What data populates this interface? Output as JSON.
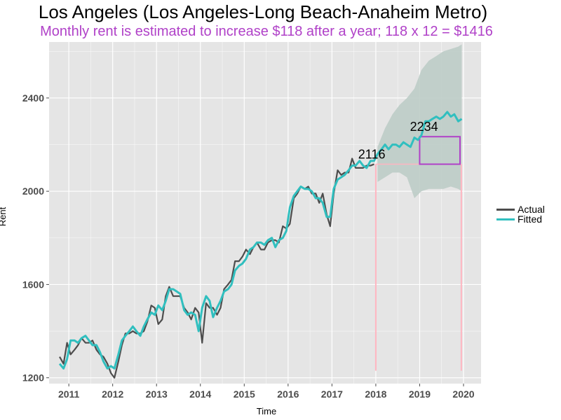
{
  "chart_data": {
    "type": "line",
    "title": "Los Angeles (Los Angeles-Long Beach-Anaheim Metro)",
    "subtitle": "Monthly rent is estimated to increase $118 after a year; 118 x 12 = $1416",
    "xlabel": "Time",
    "ylabel": "Rent",
    "xlim": [
      2010.55,
      2020.4
    ],
    "ylim": [
      1175,
      2640
    ],
    "x_ticks": [
      2011,
      2012,
      2013,
      2014,
      2015,
      2016,
      2017,
      2018,
      2019,
      2020
    ],
    "y_ticks": [
      1200,
      1600,
      2000,
      2400
    ],
    "grid": true,
    "legend_position": "right",
    "series": [
      {
        "name": "Actual",
        "color": "#4d4d4d",
        "x": [
          2010.79,
          2010.88,
          2010.96,
          2011.04,
          2011.13,
          2011.21,
          2011.29,
          2011.38,
          2011.46,
          2011.54,
          2011.63,
          2011.71,
          2011.79,
          2011.88,
          2011.96,
          2012.04,
          2012.13,
          2012.21,
          2012.29,
          2012.38,
          2012.46,
          2012.54,
          2012.63,
          2012.71,
          2012.79,
          2012.88,
          2012.96,
          2013.04,
          2013.13,
          2013.21,
          2013.29,
          2013.38,
          2013.46,
          2013.54,
          2013.63,
          2013.71,
          2013.79,
          2013.88,
          2013.96,
          2014.04,
          2014.13,
          2014.21,
          2014.29,
          2014.38,
          2014.46,
          2014.54,
          2014.63,
          2014.71,
          2014.79,
          2014.88,
          2014.96,
          2015.04,
          2015.13,
          2015.21,
          2015.29,
          2015.38,
          2015.46,
          2015.54,
          2015.63,
          2015.71,
          2015.79,
          2015.88,
          2015.96,
          2016.04,
          2016.13,
          2016.21,
          2016.29,
          2016.38,
          2016.46,
          2016.54,
          2016.63,
          2016.71,
          2016.79,
          2016.88,
          2016.96,
          2017.04,
          2017.13,
          2017.21,
          2017.29,
          2017.38,
          2017.46,
          2017.54,
          2017.63,
          2017.71,
          2017.79,
          2017.88,
          2017.96
        ],
        "values": [
          1290,
          1260,
          1350,
          1300,
          1320,
          1340,
          1370,
          1350,
          1350,
          1360,
          1320,
          1300,
          1290,
          1260,
          1220,
          1200,
          1270,
          1340,
          1390,
          1390,
          1400,
          1390,
          1390,
          1400,
          1440,
          1510,
          1500,
          1430,
          1450,
          1550,
          1590,
          1550,
          1550,
          1550,
          1500,
          1480,
          1450,
          1500,
          1480,
          1350,
          1520,
          1500,
          1500,
          1470,
          1500,
          1580,
          1600,
          1620,
          1700,
          1700,
          1720,
          1750,
          1730,
          1760,
          1780,
          1750,
          1750,
          1780,
          1790,
          1790,
          1780,
          1850,
          1840,
          1860,
          1970,
          1990,
          2020,
          2010,
          2020,
          1990,
          1990,
          1950,
          1990,
          1900,
          1850,
          1990,
          2090,
          2070,
          2080,
          2080,
          2140,
          2100,
          2100,
          2100,
          2110,
          2110,
          2116
        ]
      },
      {
        "name": "Fitted",
        "color": "#30bfbf",
        "x": [
          2010.79,
          2010.88,
          2010.96,
          2011.04,
          2011.13,
          2011.21,
          2011.29,
          2011.38,
          2011.46,
          2011.54,
          2011.63,
          2011.71,
          2011.79,
          2011.88,
          2011.96,
          2012.04,
          2012.13,
          2012.21,
          2012.29,
          2012.38,
          2012.46,
          2012.54,
          2012.63,
          2012.71,
          2012.79,
          2012.88,
          2012.96,
          2013.04,
          2013.13,
          2013.21,
          2013.29,
          2013.38,
          2013.46,
          2013.54,
          2013.63,
          2013.71,
          2013.79,
          2013.88,
          2013.96,
          2014.04,
          2014.13,
          2014.21,
          2014.29,
          2014.38,
          2014.46,
          2014.54,
          2014.63,
          2014.71,
          2014.79,
          2014.88,
          2014.96,
          2015.04,
          2015.13,
          2015.21,
          2015.29,
          2015.38,
          2015.46,
          2015.54,
          2015.63,
          2015.71,
          2015.79,
          2015.88,
          2015.96,
          2016.04,
          2016.13,
          2016.21,
          2016.29,
          2016.38,
          2016.46,
          2016.54,
          2016.63,
          2016.71,
          2016.79,
          2016.88,
          2016.96,
          2017.04,
          2017.13,
          2017.21,
          2017.29,
          2017.38,
          2017.46,
          2017.54,
          2017.63,
          2017.71,
          2017.79,
          2017.88,
          2017.96,
          2018.04,
          2018.13,
          2018.21,
          2018.29,
          2018.38,
          2018.46,
          2018.54,
          2018.63,
          2018.71,
          2018.79,
          2018.88,
          2018.96,
          2019.04,
          2019.13,
          2019.21,
          2019.29,
          2019.38,
          2019.46,
          2019.54,
          2019.63,
          2019.71,
          2019.79,
          2019.88,
          2019.96
        ],
        "values": [
          1260,
          1240,
          1280,
          1360,
          1360,
          1350,
          1370,
          1380,
          1360,
          1340,
          1340,
          1310,
          1270,
          1240,
          1250,
          1240,
          1300,
          1360,
          1380,
          1400,
          1420,
          1400,
          1380,
          1420,
          1450,
          1480,
          1470,
          1510,
          1490,
          1530,
          1580,
          1580,
          1570,
          1560,
          1490,
          1470,
          1480,
          1470,
          1400,
          1500,
          1550,
          1530,
          1460,
          1500,
          1530,
          1570,
          1580,
          1600,
          1660,
          1680,
          1690,
          1710,
          1750,
          1760,
          1780,
          1780,
          1770,
          1790,
          1800,
          1760,
          1790,
          1800,
          1830,
          1930,
          1980,
          2000,
          2020,
          2010,
          2010,
          2000,
          1970,
          1970,
          1950,
          1890,
          1890,
          2010,
          2050,
          2060,
          2070,
          2090,
          2110,
          2110,
          2130,
          2110,
          2100,
          2130,
          2130,
          2160,
          2180,
          2200,
          2180,
          2200,
          2200,
          2190,
          2210,
          2200,
          2190,
          2230,
          2220,
          2240,
          2300,
          2300,
          2310,
          2320,
          2310,
          2320,
          2340,
          2320,
          2330,
          2300,
          2310
        ]
      }
    ],
    "forecast_band": {
      "x": [
        2018.04,
        2018.21,
        2018.38,
        2018.54,
        2018.71,
        2018.88,
        2019.04,
        2019.21,
        2019.38,
        2019.54,
        2019.71,
        2019.88,
        2019.96
      ],
      "upper": [
        2190,
        2270,
        2330,
        2370,
        2400,
        2440,
        2520,
        2560,
        2580,
        2600,
        2610,
        2620,
        2630
      ],
      "lower": [
        2040,
        2060,
        2080,
        2080,
        2060,
        1970,
        2000,
        2010,
        2010,
        2010,
        2020,
        2010,
        2000
      ],
      "color": "#bcccc6"
    },
    "annotations": [
      {
        "text": "2116",
        "x": 2017.95,
        "y": 2116
      },
      {
        "text": "2234",
        "x": 2019.13,
        "y": 2234
      }
    ],
    "reference_lines": [
      {
        "x": 2018.0,
        "color": "#ffb6c1"
      },
      {
        "x": 2019.95,
        "color": "#ffb6c1"
      }
    ],
    "highlight_box": {
      "x0": 2019.0,
      "x1": 2019.92,
      "y0": 2116,
      "y1": 2234,
      "color": "#b041c8"
    },
    "panel_color": "#e5e5e5",
    "grid_color": "#ffffff"
  }
}
